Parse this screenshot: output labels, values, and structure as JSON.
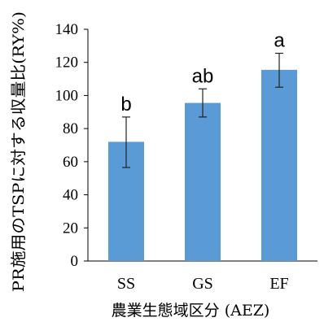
{
  "chart_data": {
    "type": "bar",
    "categories": [
      "SS",
      "GS",
      "EF"
    ],
    "values": [
      72,
      95.5,
      115.5
    ],
    "error_low": [
      56.5,
      87,
      105
    ],
    "error_high": [
      87,
      104,
      125.5
    ],
    "significance_labels": [
      "b",
      "ab",
      "a"
    ],
    "title": "",
    "xlabel": "農業生態域区分 (AEZ)",
    "ylabel": "PR施用のTSPに対する収量比(RY%)",
    "ylim": [
      0,
      140
    ],
    "yticks": [
      0,
      20,
      40,
      60,
      80,
      100,
      120,
      140
    ],
    "bar_color": "#5b9bd5",
    "grid": false,
    "legend": "none"
  }
}
